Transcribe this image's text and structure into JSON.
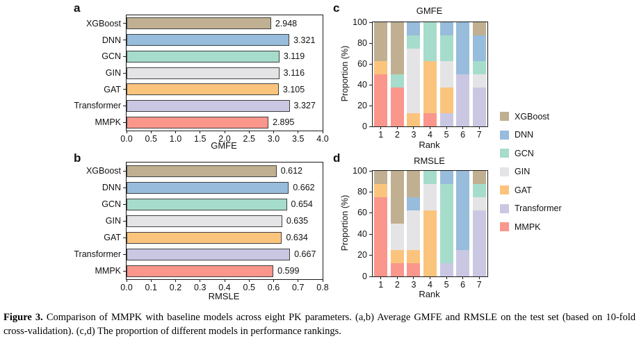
{
  "models": [
    "XGBoost",
    "DNN",
    "GCN",
    "GIN",
    "GAT",
    "Transformer",
    "MMPK"
  ],
  "colors": {
    "XGBoost": "#c0b091",
    "DNN": "#97bcdc",
    "GCN": "#a6dccb",
    "GIN": "#e4e4e6",
    "GAT": "#fbc47d",
    "Transformer": "#cac7e2",
    "MMPK": "#fa968c"
  },
  "axis_color": "#1a1a1a",
  "chart_data": [
    {
      "panel": "a",
      "type": "bar",
      "orientation": "horizontal",
      "title": "",
      "xlabel": "GMFE",
      "categories": [
        "XGBoost",
        "DNN",
        "GCN",
        "GIN",
        "GAT",
        "Transformer",
        "MMPK"
      ],
      "values": [
        2.948,
        3.321,
        3.119,
        3.116,
        3.105,
        3.327,
        2.895
      ],
      "value_labels": [
        "2.948",
        "3.321",
        "3.119",
        "3.116",
        "3.105",
        "3.327",
        "2.895"
      ],
      "xlim": [
        0,
        4.0
      ],
      "xticks": [
        "0.0",
        "0.5",
        "1.0",
        "1.5",
        "2.0",
        "2.5",
        "3.0",
        "3.5",
        "4.0"
      ],
      "grid": false
    },
    {
      "panel": "b",
      "type": "bar",
      "orientation": "horizontal",
      "title": "",
      "xlabel": "RMSLE",
      "categories": [
        "XGBoost",
        "DNN",
        "GCN",
        "GIN",
        "GAT",
        "Transformer",
        "MMPK"
      ],
      "values": [
        0.612,
        0.662,
        0.654,
        0.635,
        0.634,
        0.667,
        0.599
      ],
      "value_labels": [
        "0.612",
        "0.662",
        "0.654",
        "0.635",
        "0.634",
        "0.667",
        "0.599"
      ],
      "xlim": [
        0,
        0.8
      ],
      "xticks": [
        "0.0",
        "0.1",
        "0.2",
        "0.3",
        "0.4",
        "0.5",
        "0.6",
        "0.7",
        "0.8"
      ],
      "grid": false
    },
    {
      "panel": "c",
      "type": "stacked-bar",
      "orientation": "vertical",
      "title": "GMFE",
      "xlabel": "Rank",
      "ylabel": "Proportion (%)",
      "categories": [
        "1",
        "2",
        "3",
        "4",
        "5",
        "6",
        "7"
      ],
      "ylim": [
        0,
        100
      ],
      "yticks": [
        "0",
        "20",
        "40",
        "60",
        "80",
        "100"
      ],
      "stack_order_bottom_to_top": [
        "MMPK",
        "Transformer",
        "GAT",
        "GIN",
        "GCN",
        "DNN",
        "XGBoost"
      ],
      "series": [
        {
          "name": "XGBoost",
          "values": [
            37.5,
            50.0,
            0.0,
            0.0,
            0.0,
            0.0,
            12.5
          ]
        },
        {
          "name": "DNN",
          "values": [
            0.0,
            0.0,
            12.5,
            0.0,
            12.5,
            50.0,
            25.0
          ]
        },
        {
          "name": "GCN",
          "values": [
            0.0,
            12.5,
            12.5,
            37.5,
            25.0,
            0.0,
            12.5
          ]
        },
        {
          "name": "GIN",
          "values": [
            0.0,
            0.0,
            62.5,
            0.0,
            25.0,
            0.0,
            12.5
          ]
        },
        {
          "name": "GAT",
          "values": [
            12.5,
            0.0,
            12.5,
            50.0,
            25.0,
            0.0,
            0.0
          ]
        },
        {
          "name": "Transformer",
          "values": [
            0.0,
            0.0,
            0.0,
            0.0,
            12.5,
            50.0,
            37.5
          ]
        },
        {
          "name": "MMPK",
          "values": [
            50.0,
            37.5,
            0.0,
            12.5,
            0.0,
            0.0,
            0.0
          ]
        }
      ],
      "grid": false
    },
    {
      "panel": "d",
      "type": "stacked-bar",
      "orientation": "vertical",
      "title": "RMSLE",
      "xlabel": "Rank",
      "ylabel": "Proportion (%)",
      "categories": [
        "1",
        "2",
        "3",
        "4",
        "5",
        "6",
        "7"
      ],
      "ylim": [
        0,
        100
      ],
      "yticks": [
        "0",
        "20",
        "40",
        "60",
        "80",
        "100"
      ],
      "stack_order_bottom_to_top": [
        "MMPK",
        "Transformer",
        "GAT",
        "GIN",
        "GCN",
        "DNN",
        "XGBoost"
      ],
      "series": [
        {
          "name": "XGBoost",
          "values": [
            12.5,
            50.0,
            25.0,
            0.0,
            0.0,
            0.0,
            12.5
          ]
        },
        {
          "name": "DNN",
          "values": [
            0.0,
            0.0,
            12.5,
            0.0,
            12.5,
            75.0,
            0.0
          ]
        },
        {
          "name": "GCN",
          "values": [
            0.0,
            0.0,
            0.0,
            12.5,
            75.0,
            0.0,
            12.5
          ]
        },
        {
          "name": "GIN",
          "values": [
            0.0,
            25.0,
            37.5,
            25.0,
            0.0,
            0.0,
            12.5
          ]
        },
        {
          "name": "GAT",
          "values": [
            12.5,
            12.5,
            12.5,
            62.5,
            0.0,
            0.0,
            0.0
          ]
        },
        {
          "name": "Transformer",
          "values": [
            0.0,
            0.0,
            0.0,
            0.0,
            12.5,
            25.0,
            62.5
          ]
        },
        {
          "name": "MMPK",
          "values": [
            75.0,
            12.5,
            12.5,
            0.0,
            0.0,
            0.0,
            0.0
          ]
        }
      ],
      "grid": false
    }
  ],
  "legend": {
    "items": [
      "XGBoost",
      "DNN",
      "GCN",
      "GIN",
      "GAT",
      "Transformer",
      "MMPK"
    ],
    "position": "right"
  },
  "caption": {
    "label": "Figure 3.",
    "text": "Comparison of MMPK with baseline models across eight PK parameters. (a,b) Average GMFE and RMSLE on the test set (based on 10-fold cross-validation). (c,d) The proportion of different models in performance rankings."
  }
}
